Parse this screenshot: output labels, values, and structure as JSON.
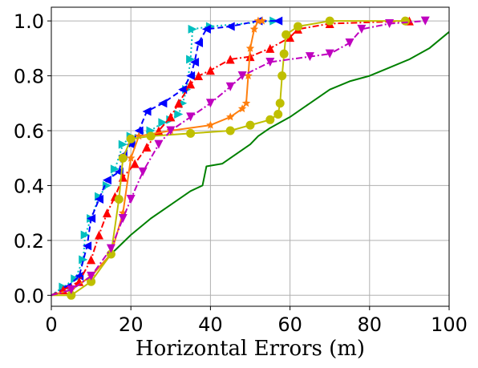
{
  "chart_data": {
    "type": "line",
    "title": "",
    "xlabel": "Horizontal Errors (m)",
    "ylabel": "",
    "xlim": [
      0,
      100
    ],
    "ylim": [
      -0.04,
      1.05
    ],
    "x_ticks": [
      0,
      20,
      40,
      60,
      80,
      100
    ],
    "y_ticks": [
      0.0,
      0.2,
      0.4,
      0.6,
      0.8,
      1.0
    ],
    "x_tick_labels": [
      "0",
      "20",
      "40",
      "60",
      "80",
      "100"
    ],
    "y_tick_labels": [
      "0.0",
      "0.2",
      "0.4",
      "0.6",
      "0.8",
      "1.0"
    ],
    "grid": true,
    "legend": "none",
    "series": [
      {
        "color": "#008000",
        "dash": "solid",
        "marker": "none",
        "points": [
          [
            0,
            0.0
          ],
          [
            5,
            0.02
          ],
          [
            10,
            0.07
          ],
          [
            15,
            0.15
          ],
          [
            20,
            0.22
          ],
          [
            25,
            0.28
          ],
          [
            30,
            0.33
          ],
          [
            35,
            0.38
          ],
          [
            38,
            0.4
          ],
          [
            39,
            0.47
          ],
          [
            43,
            0.48
          ],
          [
            45,
            0.5
          ],
          [
            50,
            0.55
          ],
          [
            52,
            0.58
          ],
          [
            55,
            0.61
          ],
          [
            60,
            0.65
          ],
          [
            65,
            0.7
          ],
          [
            70,
            0.75
          ],
          [
            75,
            0.78
          ],
          [
            80,
            0.8
          ],
          [
            85,
            0.83
          ],
          [
            90,
            0.86
          ],
          [
            95,
            0.9
          ],
          [
            100,
            0.96
          ]
        ]
      },
      {
        "color": "#00bfbf",
        "dash": "dotted",
        "marker": "triangle-right",
        "points": [
          [
            0,
            0.0
          ],
          [
            3,
            0.03
          ],
          [
            6,
            0.06
          ],
          [
            8,
            0.13
          ],
          [
            8.5,
            0.22
          ],
          [
            10,
            0.28
          ],
          [
            12,
            0.36
          ],
          [
            14,
            0.4
          ],
          [
            16,
            0.46
          ],
          [
            18,
            0.55
          ],
          [
            20,
            0.58
          ],
          [
            25,
            0.6
          ],
          [
            28,
            0.63
          ],
          [
            30,
            0.64
          ],
          [
            32,
            0.66
          ],
          [
            33,
            0.7
          ],
          [
            34,
            0.75
          ],
          [
            35,
            0.86
          ],
          [
            35.5,
            0.97
          ],
          [
            40,
            0.98
          ],
          [
            56,
            1.0
          ]
        ]
      },
      {
        "color": "#0000ff",
        "dash": "dashed",
        "marker": "triangle-left",
        "points": [
          [
            0,
            0.0
          ],
          [
            4,
            0.03
          ],
          [
            7,
            0.07
          ],
          [
            9,
            0.18
          ],
          [
            10,
            0.28
          ],
          [
            12,
            0.35
          ],
          [
            14,
            0.42
          ],
          [
            17,
            0.45
          ],
          [
            18,
            0.51
          ],
          [
            20,
            0.55
          ],
          [
            22,
            0.6
          ],
          [
            24,
            0.67
          ],
          [
            28,
            0.7
          ],
          [
            33,
            0.75
          ],
          [
            35,
            0.8
          ],
          [
            36,
            0.85
          ],
          [
            37,
            0.92
          ],
          [
            39,
            0.97
          ],
          [
            45,
            0.98
          ],
          [
            52,
            1.0
          ],
          [
            57,
            1.0
          ]
        ]
      },
      {
        "color": "#ff0000",
        "dash": "dashdot",
        "marker": "triangle-up",
        "points": [
          [
            0,
            0.0
          ],
          [
            3,
            0.02
          ],
          [
            7,
            0.05
          ],
          [
            10,
            0.13
          ],
          [
            12,
            0.22
          ],
          [
            14,
            0.3
          ],
          [
            16,
            0.36
          ],
          [
            18,
            0.43
          ],
          [
            21,
            0.48
          ],
          [
            24,
            0.54
          ],
          [
            27,
            0.6
          ],
          [
            30,
            0.65
          ],
          [
            32,
            0.7
          ],
          [
            35,
            0.77
          ],
          [
            37,
            0.8
          ],
          [
            40,
            0.82
          ],
          [
            45,
            0.86
          ],
          [
            50,
            0.87
          ],
          [
            55,
            0.9
          ],
          [
            60,
            0.94
          ],
          [
            62,
            0.97
          ],
          [
            70,
            0.99
          ],
          [
            90,
            1.0
          ]
        ]
      },
      {
        "color": "#ff7f0e",
        "dash": "solid",
        "marker": "star",
        "points": [
          [
            0,
            0.0
          ],
          [
            5,
            0.02
          ],
          [
            10,
            0.07
          ],
          [
            15,
            0.15
          ],
          [
            18,
            0.3
          ],
          [
            20,
            0.5
          ],
          [
            22,
            0.58
          ],
          [
            30,
            0.6
          ],
          [
            40,
            0.62
          ],
          [
            45,
            0.65
          ],
          [
            48,
            0.68
          ],
          [
            49,
            0.7
          ],
          [
            49.5,
            0.8
          ],
          [
            50,
            0.9
          ],
          [
            51,
            0.97
          ],
          [
            52,
            1.0
          ],
          [
            53,
            1.0
          ]
        ]
      },
      {
        "color": "#bfbf00",
        "dash": "solid",
        "marker": "circle",
        "points": [
          [
            0,
            0.0
          ],
          [
            5,
            0.0
          ],
          [
            10,
            0.05
          ],
          [
            15,
            0.15
          ],
          [
            17,
            0.35
          ],
          [
            18,
            0.5
          ],
          [
            20,
            0.57
          ],
          [
            25,
            0.58
          ],
          [
            35,
            0.59
          ],
          [
            45,
            0.6
          ],
          [
            50,
            0.62
          ],
          [
            55,
            0.64
          ],
          [
            57,
            0.66
          ],
          [
            57.5,
            0.7
          ],
          [
            58,
            0.8
          ],
          [
            58.5,
            0.88
          ],
          [
            59,
            0.95
          ],
          [
            62,
            0.98
          ],
          [
            70,
            1.0
          ],
          [
            89,
            1.0
          ]
        ]
      },
      {
        "color": "#bf00bf",
        "dash": "dashdot",
        "marker": "triangle-down",
        "points": [
          [
            0,
            0.0
          ],
          [
            5,
            0.02
          ],
          [
            10,
            0.07
          ],
          [
            15,
            0.17
          ],
          [
            18,
            0.28
          ],
          [
            20,
            0.35
          ],
          [
            23,
            0.45
          ],
          [
            27,
            0.55
          ],
          [
            30,
            0.6
          ],
          [
            35,
            0.65
          ],
          [
            40,
            0.7
          ],
          [
            45,
            0.76
          ],
          [
            48,
            0.8
          ],
          [
            55,
            0.85
          ],
          [
            65,
            0.87
          ],
          [
            70,
            0.88
          ],
          [
            75,
            0.92
          ],
          [
            78,
            0.97
          ],
          [
            85,
            0.99
          ],
          [
            94,
            1.0
          ]
        ]
      }
    ]
  }
}
